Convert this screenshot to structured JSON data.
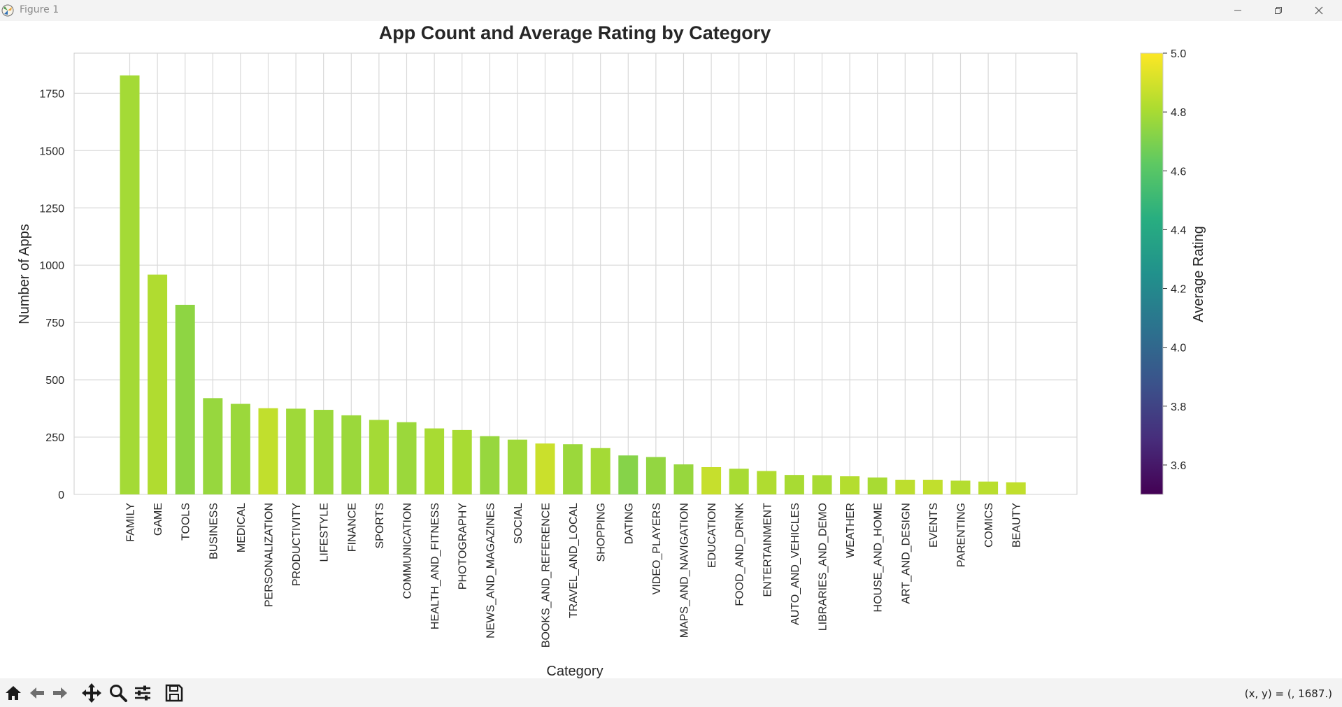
{
  "window": {
    "title": "Figure 1"
  },
  "toolbar": {
    "coords": "(x, y) = (, 1687.)"
  },
  "icons": [
    "app-icon",
    "minimize-icon",
    "maximize-icon",
    "close-icon",
    "home-icon",
    "back-icon",
    "forward-icon",
    "pan-icon",
    "zoom-icon",
    "configure-icon",
    "save-icon"
  ],
  "chart_data": {
    "type": "bar",
    "title": "App Count and Average Rating by Category",
    "xlabel": "Category",
    "ylabel": "Number of Apps",
    "ylim": [
      0,
      1925
    ],
    "yticks": [
      0,
      250,
      500,
      750,
      1000,
      1250,
      1500,
      1750
    ],
    "grid": true,
    "categories": [
      "FAMILY",
      "GAME",
      "TOOLS",
      "BUSINESS",
      "MEDICAL",
      "PERSONALIZATION",
      "PRODUCTIVITY",
      "LIFESTYLE",
      "FINANCE",
      "SPORTS",
      "COMMUNICATION",
      "HEALTH_AND_FITNESS",
      "PHOTOGRAPHY",
      "NEWS_AND_MAGAZINES",
      "SOCIAL",
      "BOOKS_AND_REFERENCE",
      "TRAVEL_AND_LOCAL",
      "SHOPPING",
      "DATING",
      "VIDEO_PLAYERS",
      "MAPS_AND_NAVIGATION",
      "EDUCATION",
      "FOOD_AND_DRINK",
      "ENTERTAINMENT",
      "AUTO_AND_VEHICLES",
      "LIBRARIES_AND_DEMO",
      "WEATHER",
      "HOUSE_AND_HOME",
      "ART_AND_DESIGN",
      "EVENTS",
      "PARENTING",
      "COMICS",
      "BEAUTY"
    ],
    "values": [
      1828,
      959,
      827,
      420,
      395,
      376,
      374,
      369,
      345,
      325,
      315,
      288,
      281,
      254,
      239,
      222,
      219,
      202,
      170,
      163,
      131,
      119,
      112,
      102,
      85,
      84,
      79,
      74,
      64,
      64,
      60,
      56,
      53
    ],
    "ratings": [
      4.79,
      4.82,
      4.74,
      4.76,
      4.77,
      4.86,
      4.78,
      4.77,
      4.77,
      4.79,
      4.77,
      4.8,
      4.8,
      4.76,
      4.78,
      4.88,
      4.77,
      4.79,
      4.72,
      4.75,
      4.76,
      4.87,
      4.8,
      4.82,
      4.8,
      4.8,
      4.83,
      4.8,
      4.85,
      4.86,
      4.83,
      4.84,
      4.86
    ],
    "colorbar": {
      "label": "Average Rating",
      "colormap": "viridis",
      "range": [
        3.5,
        5.0
      ],
      "ticks": [
        3.6,
        3.8,
        4.0,
        4.2,
        4.4,
        4.6,
        4.8,
        5.0
      ]
    }
  }
}
